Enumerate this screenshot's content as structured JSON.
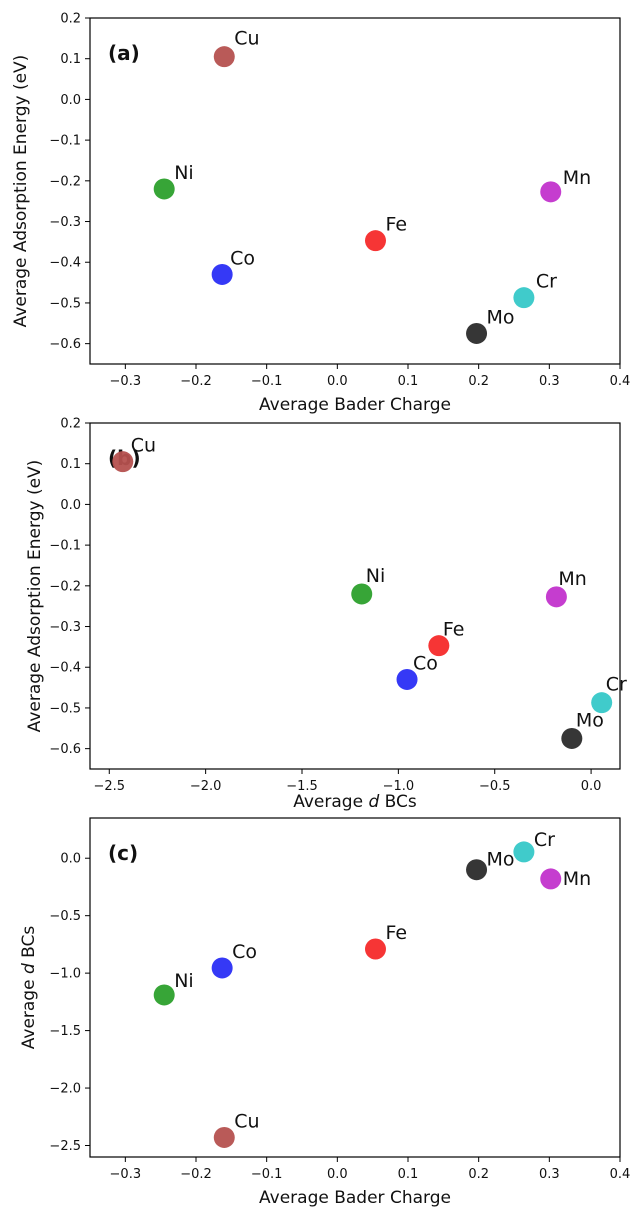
{
  "chart_data": [
    {
      "type": "scatter",
      "panel_label": "(a)",
      "xlabel": "Average Bader Charge",
      "ylabel": "Average Adsorption Energy (eV)",
      "xlim": [
        -0.35,
        0.4
      ],
      "ylim": [
        -0.65,
        0.2
      ],
      "xticks": [
        -0.3,
        -0.2,
        -0.1,
        0.0,
        0.1,
        0.2,
        0.3,
        0.4
      ],
      "xtick_labels": [
        "−0.3",
        "−0.2",
        "−0.1",
        "0.0",
        "0.1",
        "0.2",
        "0.3",
        "0.4"
      ],
      "yticks": [
        0.2,
        0.1,
        0.0,
        -0.1,
        -0.2,
        -0.3,
        -0.4,
        -0.5,
        -0.6
      ],
      "ytick_labels": [
        "0.2",
        "0.1",
        "0.0",
        "−0.1",
        "−0.2",
        "−0.3",
        "−0.4",
        "−0.5",
        "−0.6"
      ],
      "grid": false,
      "points": [
        {
          "label": "Cu",
          "x": -0.16,
          "y": 0.105,
          "color": "#b5514f"
        },
        {
          "label": "Ni",
          "x": -0.245,
          "y": -0.22,
          "color": "#2ca02c"
        },
        {
          "label": "Co",
          "x": -0.163,
          "y": -0.43,
          "color": "#2a2ef5"
        },
        {
          "label": "Fe",
          "x": 0.054,
          "y": -0.347,
          "color": "#f52a2a"
        },
        {
          "label": "Mn",
          "x": 0.302,
          "y": -0.227,
          "color": "#c233cc"
        },
        {
          "label": "Cr",
          "x": 0.264,
          "y": -0.487,
          "color": "#36c8c8"
        },
        {
          "label": "Mo",
          "x": 0.197,
          "y": -0.575,
          "color": "#2b2b2b"
        }
      ]
    },
    {
      "type": "scatter",
      "panel_label": "(b)",
      "xlabel_prefix": "Average ",
      "xlabel_italic": "d",
      "xlabel_suffix": " BCs",
      "ylabel": "Average Adsorption Energy (eV)",
      "xlim": [
        -2.6,
        0.15
      ],
      "ylim": [
        -0.65,
        0.2
      ],
      "xticks": [
        -2.5,
        -2.0,
        -1.5,
        -1.0,
        -0.5,
        0.0
      ],
      "xtick_labels": [
        "−2.5",
        "−2.0",
        "−1.5",
        "−1.0",
        "−0.5",
        "0.0"
      ],
      "yticks": [
        0.2,
        0.1,
        0.0,
        -0.1,
        -0.2,
        -0.3,
        -0.4,
        -0.5,
        -0.6
      ],
      "ytick_labels": [
        "0.2",
        "0.1",
        "0.0",
        "−0.1",
        "−0.2",
        "−0.3",
        "−0.4",
        "−0.5",
        "−0.6"
      ],
      "grid": false,
      "points": [
        {
          "label": "Cu",
          "x": -2.43,
          "y": 0.105,
          "color": "#b5514f"
        },
        {
          "label": "Ni",
          "x": -1.19,
          "y": -0.22,
          "color": "#2ca02c"
        },
        {
          "label": "Co",
          "x": -0.955,
          "y": -0.43,
          "color": "#2a2ef5"
        },
        {
          "label": "Fe",
          "x": -0.79,
          "y": -0.347,
          "color": "#f52a2a"
        },
        {
          "label": "Mn",
          "x": -0.18,
          "y": -0.227,
          "color": "#c233cc"
        },
        {
          "label": "Cr",
          "x": 0.055,
          "y": -0.487,
          "color": "#36c8c8"
        },
        {
          "label": "Mo",
          "x": -0.1,
          "y": -0.575,
          "color": "#2b2b2b"
        }
      ]
    },
    {
      "type": "scatter",
      "panel_label": "(c)",
      "xlabel": "Average Bader Charge",
      "ylabel_prefix": "Average ",
      "ylabel_italic": "d",
      "ylabel_suffix": " BCs",
      "xlim": [
        -0.35,
        0.4
      ],
      "ylim": [
        -2.6,
        0.35
      ],
      "xticks": [
        -0.3,
        -0.2,
        -0.1,
        0.0,
        0.1,
        0.2,
        0.3,
        0.4
      ],
      "xtick_labels": [
        "−0.3",
        "−0.2",
        "−0.1",
        "0.0",
        "0.1",
        "0.2",
        "0.3",
        "0.4"
      ],
      "yticks": [
        0.0,
        -0.5,
        -1.0,
        -1.5,
        -2.0,
        -2.5
      ],
      "ytick_labels": [
        "0.0",
        "−0.5",
        "−1.0",
        "−1.5",
        "−2.0",
        "−2.5"
      ],
      "grid": false,
      "points": [
        {
          "label": "Cr",
          "x": 0.264,
          "y": 0.055,
          "color": "#36c8c8"
        },
        {
          "label": "Mo",
          "x": 0.197,
          "y": -0.1,
          "color": "#2b2b2b"
        },
        {
          "label": "Mn",
          "x": 0.302,
          "y": -0.18,
          "color": "#c233cc"
        },
        {
          "label": "Fe",
          "x": 0.054,
          "y": -0.79,
          "color": "#f52a2a"
        },
        {
          "label": "Co",
          "x": -0.163,
          "y": -0.955,
          "color": "#2a2ef5"
        },
        {
          "label": "Ni",
          "x": -0.245,
          "y": -1.19,
          "color": "#2ca02c"
        },
        {
          "label": "Cu",
          "x": -0.16,
          "y": -2.43,
          "color": "#b5514f"
        }
      ]
    }
  ]
}
